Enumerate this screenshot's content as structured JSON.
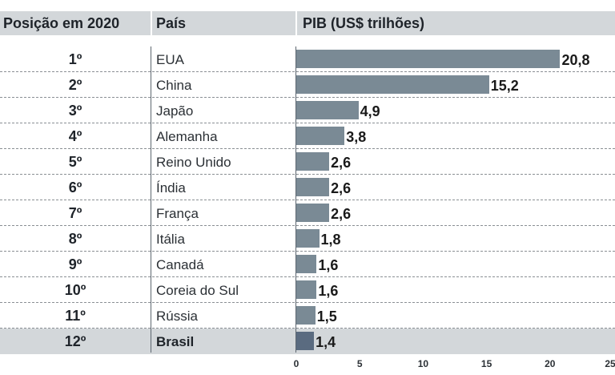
{
  "header": {
    "rank_label": "Posição em 2020",
    "country_label": "País",
    "gdp_label": "PIB (US$ trilhões)"
  },
  "chart_data": {
    "type": "bar",
    "orientation": "horizontal",
    "categories": [
      "EUA",
      "China",
      "Japão",
      "Alemanha",
      "Reino Unido",
      "Índia",
      "França",
      "Itália",
      "Canadá",
      "Coreia do Sul",
      "Rússia",
      "Brasil"
    ],
    "ranks": [
      "1º",
      "2º",
      "3º",
      "4º",
      "5º",
      "6º",
      "7º",
      "8º",
      "9º",
      "10º",
      "11º",
      "12º"
    ],
    "values": [
      20.8,
      15.2,
      4.9,
      3.8,
      2.6,
      2.6,
      2.6,
      1.8,
      1.6,
      1.6,
      1.5,
      1.4
    ],
    "value_labels": [
      "20,8",
      "15,2",
      "4,9",
      "3,8",
      "2,6",
      "2,6",
      "2,6",
      "1,8",
      "1,6",
      "1,6",
      "1,5",
      "1,4"
    ],
    "highlight": "Brasil",
    "xlim": [
      0,
      25
    ],
    "xticks": [
      0,
      5,
      10,
      15,
      20,
      25
    ],
    "bar_color": "#7a8a95",
    "highlight_bar_color": "#5a6b80",
    "highlight_row_color": "#d3d7da",
    "header_color": "#d3d7da"
  }
}
